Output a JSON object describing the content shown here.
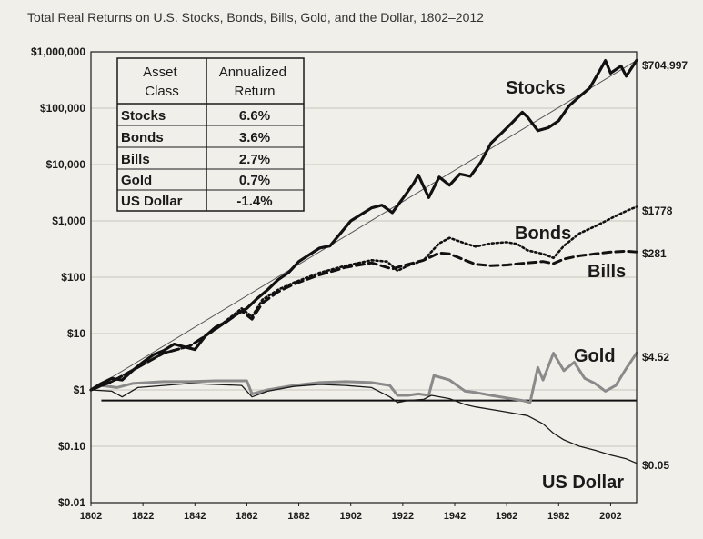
{
  "chart_data": {
    "type": "line",
    "title": "Total Real Returns on U.S. Stocks, Bonds, Bills, Gold, and the Dollar, 1802–2012",
    "xlabel": "",
    "ylabel": "",
    "yscale": "log",
    "xlim": [
      1802,
      2012
    ],
    "ylim": [
      0.01,
      1000000
    ],
    "x_ticks": [
      "1802",
      "1822",
      "1842",
      "1862",
      "1882",
      "1902",
      "1922",
      "1942",
      "1962",
      "1982",
      "2002"
    ],
    "y_ticks": [
      "$1,000,000",
      "$100,000",
      "$10,000",
      "$1,000",
      "$100",
      "$10",
      "$1",
      "$0.10",
      "$0.01"
    ],
    "grid": true,
    "legend": "none",
    "reference_level": 0.65,
    "table": {
      "headers": [
        "Asset\nClass",
        "Annualized\nReturn"
      ],
      "rows": [
        [
          "Stocks",
          "6.6%"
        ],
        [
          "Bonds",
          "3.6%"
        ],
        [
          "Bills",
          "2.7%"
        ],
        [
          "Gold",
          "0.7%"
        ],
        [
          "US Dollar",
          "-1.4%"
        ]
      ]
    },
    "series": [
      {
        "name": "Stocks",
        "style": "solid-thick",
        "color": "#111111",
        "end_label": "$704,997",
        "points": [
          [
            1802,
            1
          ],
          [
            1806,
            1.3
          ],
          [
            1810,
            1.6
          ],
          [
            1814,
            1.5
          ],
          [
            1818,
            2.2
          ],
          [
            1822,
            3.1
          ],
          [
            1826,
            4.2
          ],
          [
            1830,
            5
          ],
          [
            1834,
            6.5
          ],
          [
            1838,
            5.8
          ],
          [
            1842,
            5.2
          ],
          [
            1846,
            9
          ],
          [
            1850,
            13
          ],
          [
            1854,
            16
          ],
          [
            1858,
            22
          ],
          [
            1862,
            28
          ],
          [
            1866,
            42
          ],
          [
            1870,
            60
          ],
          [
            1874,
            90
          ],
          [
            1878,
            120
          ],
          [
            1882,
            190
          ],
          [
            1886,
            250
          ],
          [
            1890,
            330
          ],
          [
            1894,
            360
          ],
          [
            1898,
            600
          ],
          [
            1902,
            1000
          ],
          [
            1906,
            1300
          ],
          [
            1910,
            1700
          ],
          [
            1914,
            1900
          ],
          [
            1918,
            1400
          ],
          [
            1922,
            2500
          ],
          [
            1926,
            4500
          ],
          [
            1928,
            6500
          ],
          [
            1932,
            2600
          ],
          [
            1936,
            6000
          ],
          [
            1940,
            4300
          ],
          [
            1944,
            6800
          ],
          [
            1948,
            6200
          ],
          [
            1952,
            11000
          ],
          [
            1956,
            24000
          ],
          [
            1960,
            36000
          ],
          [
            1964,
            55000
          ],
          [
            1968,
            85000
          ],
          [
            1970,
            70000
          ],
          [
            1974,
            40000
          ],
          [
            1978,
            45000
          ],
          [
            1982,
            60000
          ],
          [
            1986,
            110000
          ],
          [
            1990,
            160000
          ],
          [
            1994,
            230000
          ],
          [
            1998,
            480000
          ],
          [
            2000,
            700000
          ],
          [
            2002,
            420000
          ],
          [
            2006,
            560000
          ],
          [
            2008,
            370000
          ],
          [
            2012,
            704997
          ]
        ]
      },
      {
        "name": "",
        "style": "trend",
        "color": "#555555",
        "points": [
          [
            1802,
            1
          ],
          [
            2012,
            704997
          ]
        ]
      },
      {
        "name": "Bonds",
        "style": "dotted",
        "color": "#111111",
        "end_label": "$1778",
        "points": [
          [
            1802,
            1
          ],
          [
            1810,
            1.4
          ],
          [
            1820,
            2.5
          ],
          [
            1830,
            4.5
          ],
          [
            1840,
            6
          ],
          [
            1850,
            12
          ],
          [
            1860,
            28
          ],
          [
            1864,
            20
          ],
          [
            1868,
            40
          ],
          [
            1874,
            60
          ],
          [
            1880,
            80
          ],
          [
            1890,
            120
          ],
          [
            1900,
            160
          ],
          [
            1910,
            200
          ],
          [
            1916,
            190
          ],
          [
            1920,
            130
          ],
          [
            1924,
            160
          ],
          [
            1930,
            200
          ],
          [
            1936,
            400
          ],
          [
            1940,
            500
          ],
          [
            1946,
            400
          ],
          [
            1950,
            350
          ],
          [
            1956,
            400
          ],
          [
            1962,
            420
          ],
          [
            1966,
            390
          ],
          [
            1970,
            300
          ],
          [
            1976,
            260
          ],
          [
            1980,
            220
          ],
          [
            1984,
            360
          ],
          [
            1990,
            600
          ],
          [
            1996,
            800
          ],
          [
            2002,
            1100
          ],
          [
            2008,
            1500
          ],
          [
            2012,
            1778
          ]
        ]
      },
      {
        "name": "Bills",
        "style": "dashed",
        "color": "#111111",
        "end_label": "$281",
        "points": [
          [
            1802,
            1
          ],
          [
            1810,
            1.4
          ],
          [
            1820,
            2.5
          ],
          [
            1830,
            4.5
          ],
          [
            1840,
            6
          ],
          [
            1850,
            12
          ],
          [
            1860,
            25
          ],
          [
            1864,
            18
          ],
          [
            1868,
            35
          ],
          [
            1874,
            55
          ],
          [
            1880,
            75
          ],
          [
            1890,
            110
          ],
          [
            1900,
            150
          ],
          [
            1910,
            180
          ],
          [
            1918,
            140
          ],
          [
            1922,
            160
          ],
          [
            1930,
            200
          ],
          [
            1936,
            270
          ],
          [
            1940,
            260
          ],
          [
            1946,
            200
          ],
          [
            1950,
            170
          ],
          [
            1956,
            160
          ],
          [
            1962,
            165
          ],
          [
            1970,
            180
          ],
          [
            1976,
            190
          ],
          [
            1980,
            175
          ],
          [
            1984,
            210
          ],
          [
            1990,
            240
          ],
          [
            1996,
            260
          ],
          [
            2002,
            280
          ],
          [
            2008,
            290
          ],
          [
            2012,
            281
          ]
        ]
      },
      {
        "name": "Gold",
        "style": "solid-gray",
        "color": "#8a8a8a",
        "end_label": "$4.52",
        "points": [
          [
            1802,
            1
          ],
          [
            1806,
            1.2
          ],
          [
            1812,
            1.1
          ],
          [
            1818,
            1.3
          ],
          [
            1830,
            1.4
          ],
          [
            1840,
            1.4
          ],
          [
            1850,
            1.45
          ],
          [
            1862,
            1.45
          ],
          [
            1864,
            0.85
          ],
          [
            1870,
            1.0
          ],
          [
            1880,
            1.2
          ],
          [
            1890,
            1.35
          ],
          [
            1900,
            1.4
          ],
          [
            1910,
            1.35
          ],
          [
            1917,
            1.2
          ],
          [
            1920,
            0.8
          ],
          [
            1924,
            0.8
          ],
          [
            1928,
            0.85
          ],
          [
            1932,
            0.8
          ],
          [
            1934,
            1.8
          ],
          [
            1940,
            1.5
          ],
          [
            1946,
            0.95
          ],
          [
            1950,
            0.9
          ],
          [
            1956,
            0.8
          ],
          [
            1962,
            0.72
          ],
          [
            1968,
            0.65
          ],
          [
            1971,
            0.6
          ],
          [
            1974,
            2.5
          ],
          [
            1976,
            1.5
          ],
          [
            1980,
            4.5
          ],
          [
            1984,
            2.2
          ],
          [
            1988,
            3.1
          ],
          [
            1992,
            1.6
          ],
          [
            1996,
            1.3
          ],
          [
            2000,
            0.95
          ],
          [
            2004,
            1.2
          ],
          [
            2008,
            2.4
          ],
          [
            2012,
            4.52
          ]
        ]
      },
      {
        "name": "US Dollar",
        "style": "solid-thin",
        "color": "#1a1a1a",
        "end_label": "$0.05",
        "points": [
          [
            1802,
            1
          ],
          [
            1810,
            0.95
          ],
          [
            1814,
            0.75
          ],
          [
            1820,
            1.1
          ],
          [
            1830,
            1.2
          ],
          [
            1840,
            1.3
          ],
          [
            1850,
            1.25
          ],
          [
            1860,
            1.2
          ],
          [
            1864,
            0.75
          ],
          [
            1870,
            0.95
          ],
          [
            1880,
            1.15
          ],
          [
            1890,
            1.25
          ],
          [
            1900,
            1.2
          ],
          [
            1910,
            1.1
          ],
          [
            1917,
            0.75
          ],
          [
            1920,
            0.6
          ],
          [
            1924,
            0.65
          ],
          [
            1930,
            0.68
          ],
          [
            1933,
            0.8
          ],
          [
            1940,
            0.7
          ],
          [
            1946,
            0.55
          ],
          [
            1950,
            0.5
          ],
          [
            1960,
            0.42
          ],
          [
            1970,
            0.35
          ],
          [
            1976,
            0.25
          ],
          [
            1980,
            0.17
          ],
          [
            1984,
            0.13
          ],
          [
            1990,
            0.1
          ],
          [
            1996,
            0.085
          ],
          [
            2002,
            0.07
          ],
          [
            2008,
            0.06
          ],
          [
            2012,
            0.05
          ]
        ]
      }
    ]
  }
}
